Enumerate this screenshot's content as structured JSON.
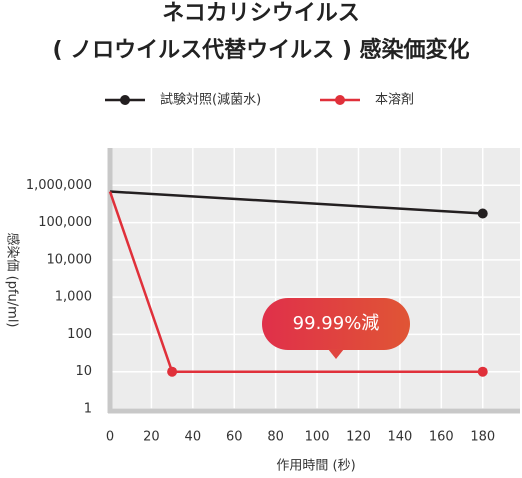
{
  "chart_data": {
    "type": "line",
    "title": [
      "ネコカリシウイルス",
      "( ノロウイルス代替ウイルス ) 感染価変化"
    ],
    "xlabel": "作用時間 (秒)",
    "ylabel": "感染価 (pfu/ml)",
    "annotation": "99.99%減",
    "log_y": true,
    "grid": true,
    "xlim": [
      0,
      198
    ],
    "xticks": [
      0,
      20,
      40,
      60,
      80,
      100,
      120,
      140,
      160,
      180
    ],
    "ylim": [
      1,
      10000000
    ],
    "yticks": [
      1,
      10,
      100,
      {
        "value": 1000,
        "label": "1,000"
      },
      {
        "value": 10000,
        "label": "10,000"
      },
      {
        "value": 100000,
        "label": "100,000"
      },
      {
        "value": 1000000,
        "label": "1,000,000"
      }
    ],
    "series": [
      {
        "name": "試験対照(減菌水)",
        "color": "#231f20",
        "x": [
          0,
          180
        ],
        "values": [
          680000,
          175000
        ]
      },
      {
        "name": "本溶剤",
        "color": "#e0303a",
        "x": [
          0,
          30,
          180
        ],
        "values": [
          680000,
          10,
          10
        ]
      }
    ]
  }
}
